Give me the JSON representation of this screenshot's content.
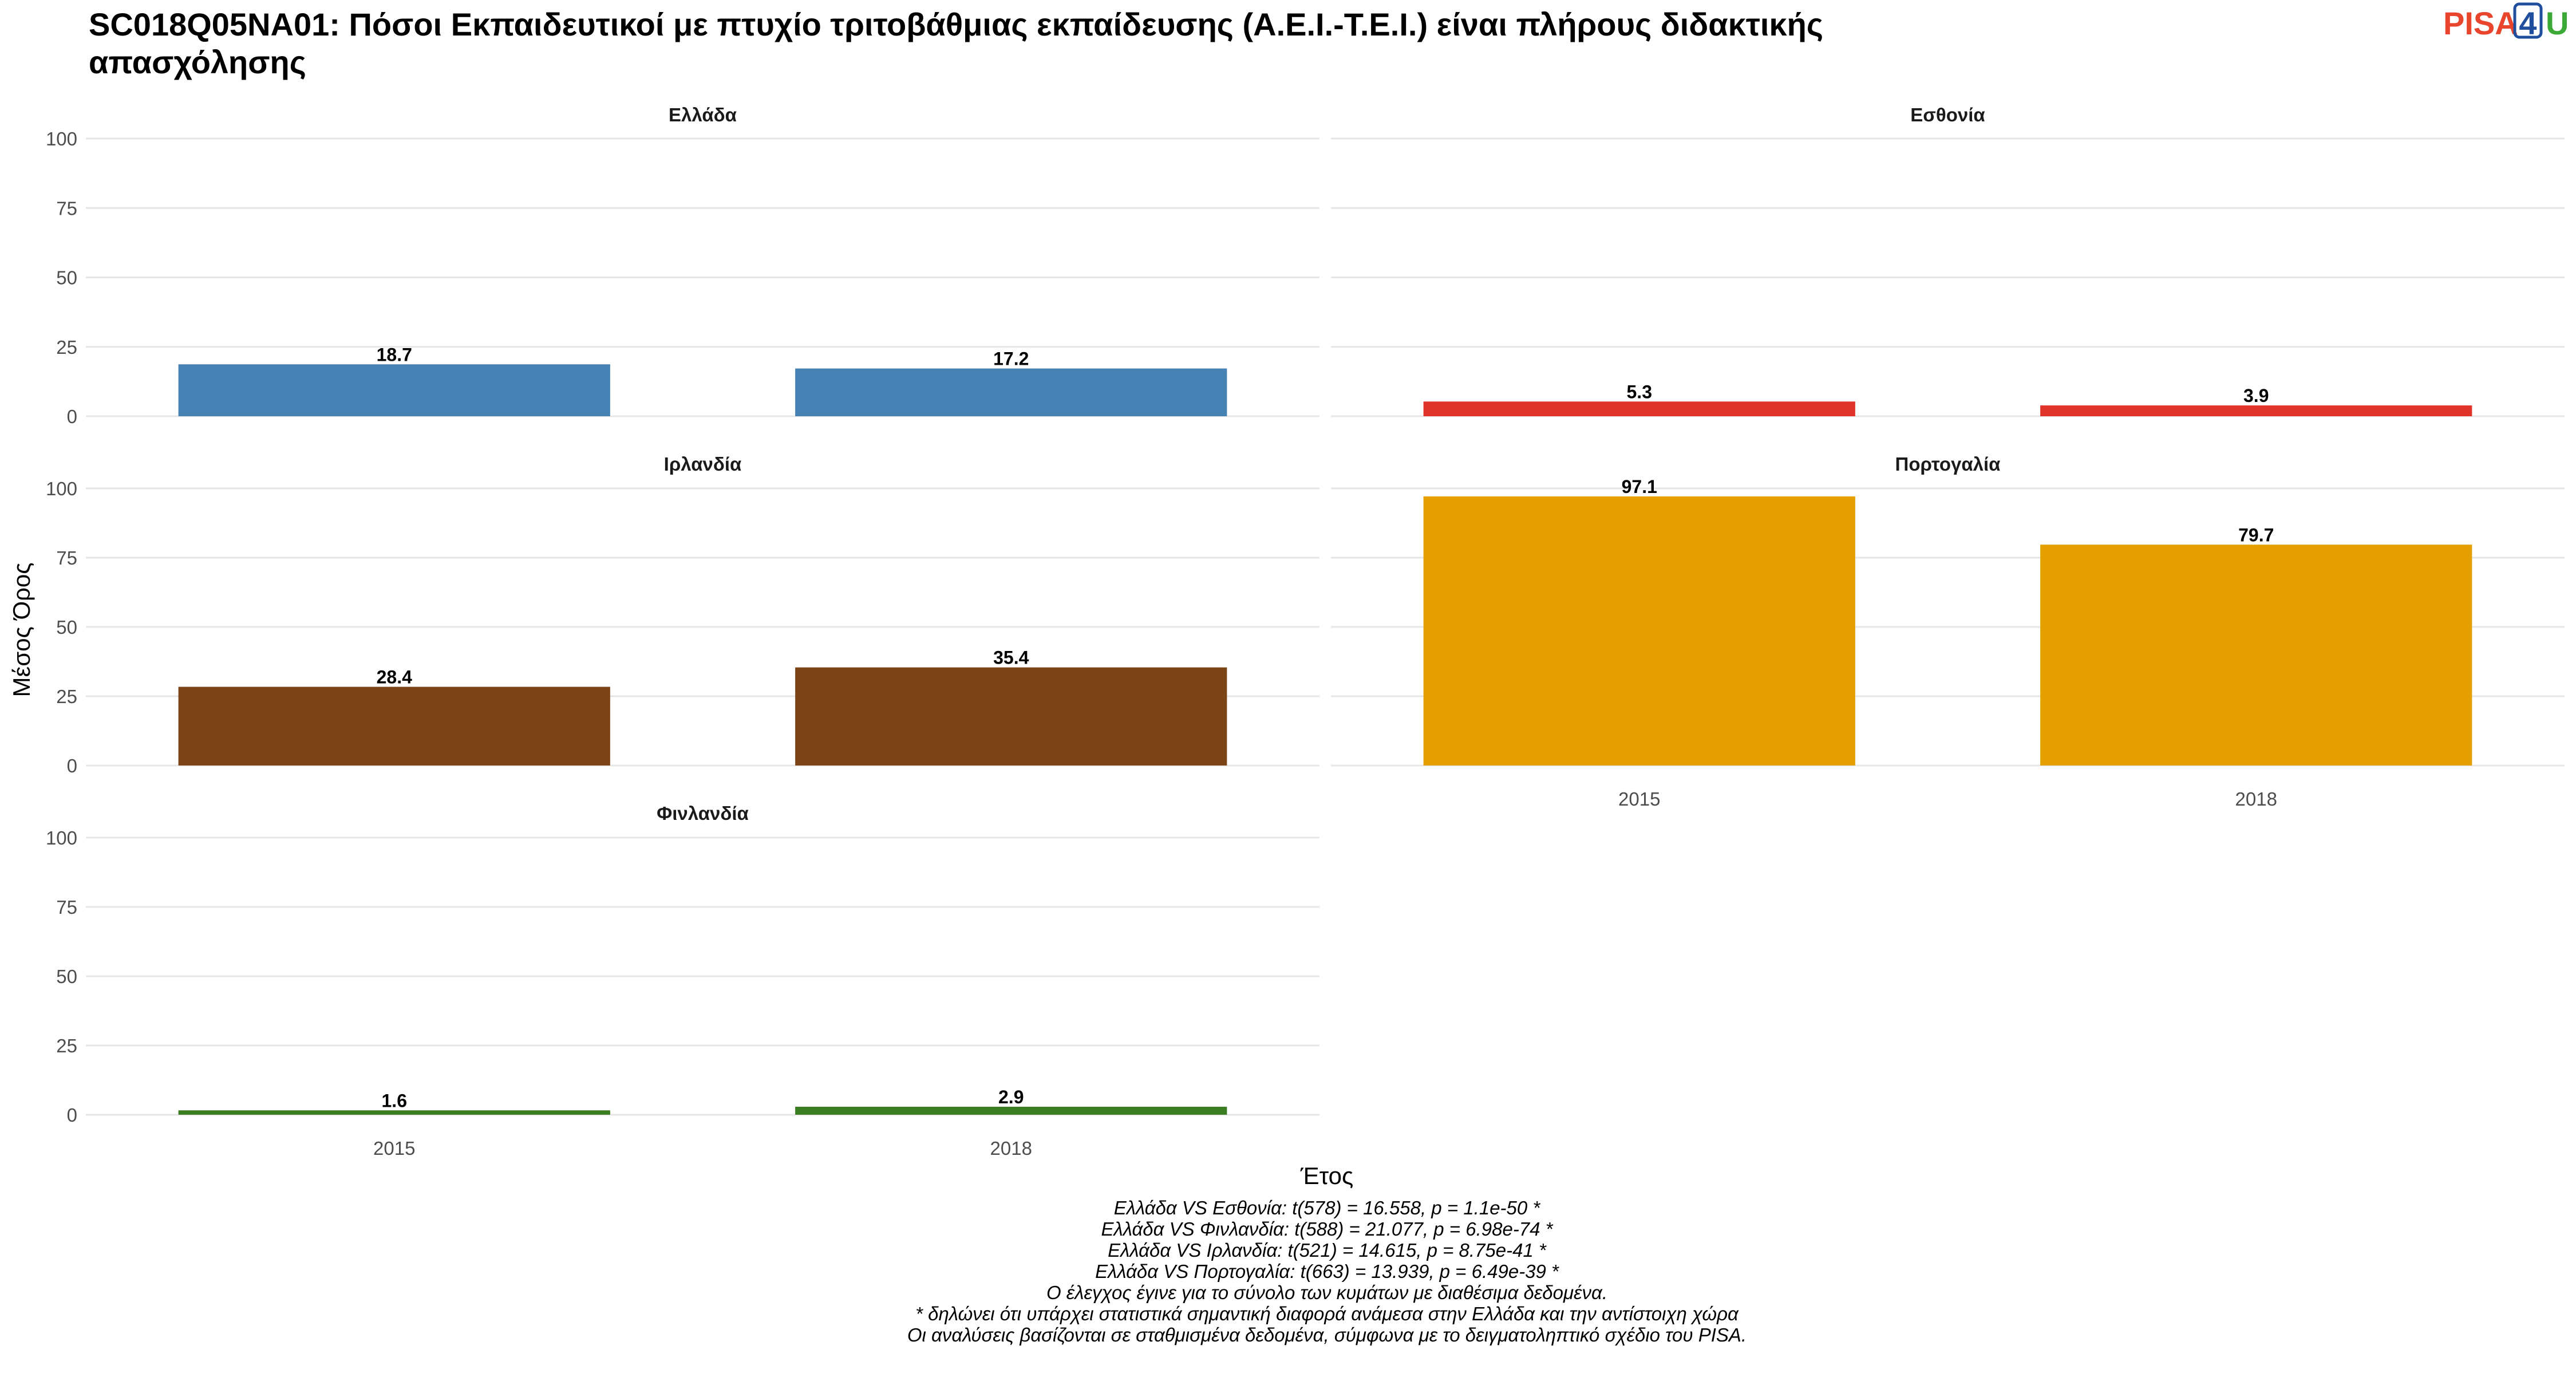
{
  "title_line1": "SC018Q05NA01: Πόσοι Εκπαιδευτικοί με πτυχίο τριτοβάθμιας εκπαίδευσης (Α.Ε.Ι.-Τ.Ε.Ι.) είναι πλήρους διδακτικής",
  "title_line2": "απασχόλησης",
  "logo": {
    "part1": "PISA",
    "part2": "4",
    "part3": "U",
    "color1": "#e8452c",
    "color2": "#1f4e9c",
    "color3": "#3aa935"
  },
  "caption": [
    "Ελλάδα VS Εσθονία: t(578) = 16.558, p = 1.1e-50 *",
    "Ελλάδα VS Φινλανδία: t(588) = 21.077, p = 6.98e-74 *",
    "Ελλάδα VS Ιρλανδία: t(521) = 14.615, p = 8.75e-41 *",
    "Ελλάδα VS Πορτογαλία: t(663) = 13.939, p = 6.49e-39 *",
    "Ο έλεγχος έγινε για το σύνολο των κυμάτων με διαθέσιμα δεδομένα.",
    "* δηλώνει ότι υπάρχει στατιστικά σημαντική διαφορά ανάμεσα στην Ελλάδα και την αντίστοιχη χώρα",
    "Οι αναλύσεις βασίζονται σε σταθμισμένα δεδομένα, σύμφωνα με το δειγματοληπτικό σχέδιο του PISA."
  ],
  "chart_data": {
    "type": "bar",
    "xlabel": "Έτος",
    "ylabel": "Μέσος Όρος",
    "categories": [
      "2015",
      "2018"
    ],
    "ylim": [
      0,
      100
    ],
    "yticks": [
      0,
      25,
      50,
      75,
      100
    ],
    "grid": true,
    "panels": [
      {
        "name": "Ελλάδα",
        "color": "#4682b4",
        "values": [
          18.7,
          17.2
        ],
        "labels": [
          "18.7",
          "17.2"
        ]
      },
      {
        "name": "Εσθονία",
        "color": "#e0342a",
        "values": [
          5.3,
          3.9
        ],
        "labels": [
          "5.3",
          "3.9"
        ]
      },
      {
        "name": "Ιρλανδία",
        "color": "#7b4416",
        "values": [
          28.4,
          35.4
        ],
        "labels": [
          "28.4",
          "35.4"
        ]
      },
      {
        "name": "Πορτογαλία",
        "color": "#e5a000",
        "values": [
          97.1,
          79.7
        ],
        "labels": [
          "97.1",
          "79.7"
        ]
      },
      {
        "name": "Φινλανδία",
        "color": "#3a7d22",
        "values": [
          1.6,
          2.9
        ],
        "labels": [
          "1.6",
          "2.9"
        ]
      }
    ]
  }
}
